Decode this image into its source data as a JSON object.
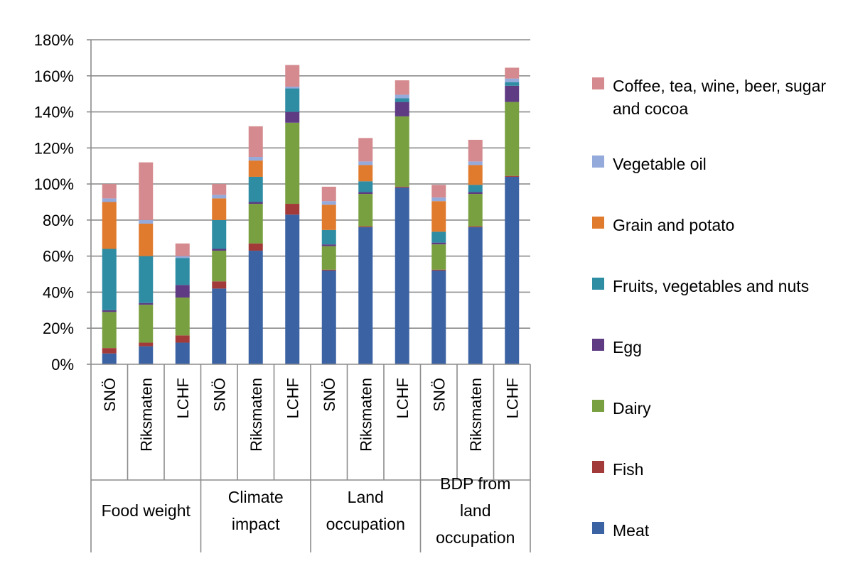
{
  "chart_data": {
    "type": "bar",
    "stacked": true,
    "y_axis": {
      "min": 0,
      "max": 180,
      "ticks": [
        "0%",
        "20%",
        "40%",
        "60%",
        "80%",
        "100%",
        "120%",
        "140%",
        "160%",
        "180%"
      ]
    },
    "grid": true,
    "legend_position": "right",
    "groups": [
      {
        "label": "Food weight",
        "categories": [
          "SNÖ",
          "Riksmaten",
          "LCHF"
        ]
      },
      {
        "label": "Climate impact",
        "categories": [
          "SNÖ",
          "Riksmaten",
          "LCHF"
        ]
      },
      {
        "label": "Land occupation",
        "categories": [
          "SNÖ",
          "Riksmaten",
          "LCHF"
        ]
      },
      {
        "label": "BDP from land occupation",
        "categories": [
          "SNÖ",
          "Riksmaten",
          "LCHF"
        ]
      }
    ],
    "series": [
      {
        "name": "Meat",
        "color": "#3b63a3",
        "values": [
          6,
          10,
          12,
          42,
          63,
          83,
          52,
          76,
          98,
          52,
          76,
          104
        ]
      },
      {
        "name": "Fish",
        "color": "#a33a3a",
        "values": [
          3,
          2,
          4,
          4,
          4,
          6,
          0.5,
          0.5,
          0.5,
          0.5,
          0.5,
          0.5
        ]
      },
      {
        "name": "Dairy",
        "color": "#79a040",
        "values": [
          20,
          21,
          21,
          17,
          22,
          45,
          13,
          18,
          39,
          14,
          18,
          41
        ]
      },
      {
        "name": "Egg",
        "color": "#5e3b82",
        "values": [
          1,
          1,
          7,
          1,
          1,
          6,
          1,
          1,
          8,
          1,
          1,
          9
        ]
      },
      {
        "name": "Fruits, vegetables and nuts",
        "color": "#2e8ca3",
        "values": [
          34,
          26,
          15,
          16,
          14,
          13,
          8,
          6,
          2,
          6,
          4,
          2
        ]
      },
      {
        "name": "Grain and potato",
        "color": "#e07b2e",
        "values": [
          26,
          18,
          0,
          12,
          9,
          0,
          14,
          9,
          0,
          17,
          11,
          0
        ]
      },
      {
        "name": "Vegetable oil",
        "color": "#94aadb",
        "values": [
          2,
          2,
          1,
          2,
          2,
          1,
          2,
          2,
          2,
          2,
          2,
          2
        ]
      },
      {
        "name": "Coffee, tea, wine, beer, sugar and cocoa",
        "color": "#d48a8e",
        "values": [
          8,
          32,
          7,
          6,
          17,
          12,
          8,
          13,
          8,
          7,
          12,
          6
        ]
      }
    ]
  }
}
